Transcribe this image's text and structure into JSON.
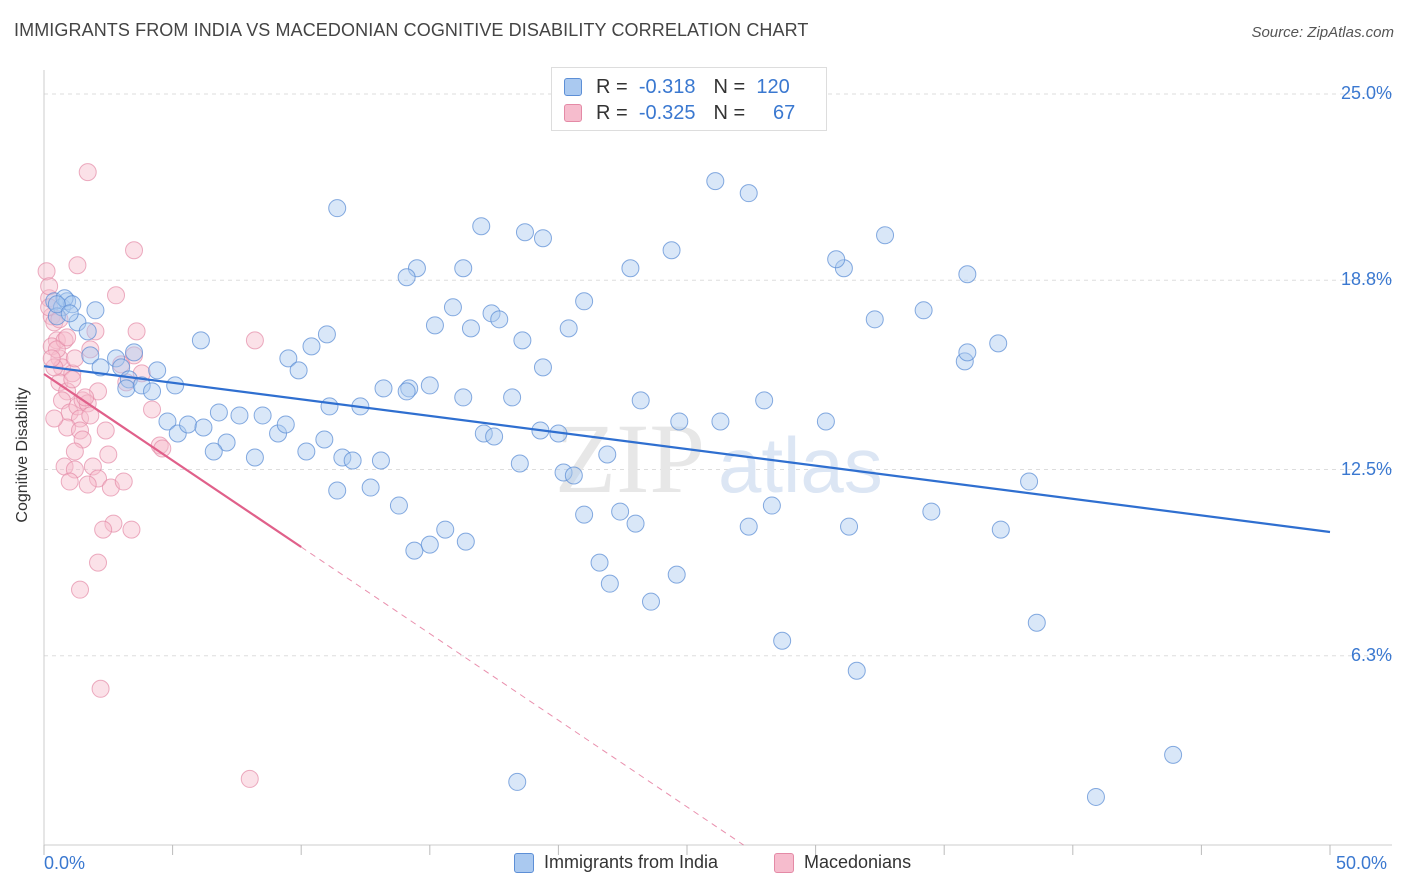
{
  "title": "IMMIGRANTS FROM INDIA VS MACEDONIAN COGNITIVE DISABILITY CORRELATION CHART",
  "source": "Source: ZipAtlas.com",
  "watermark": {
    "zip": "ZIP",
    "atlas": "atlas"
  },
  "legend_top": [
    {
      "r_label": "R =",
      "r_value": "-0.318",
      "n_label": "N =",
      "n_value": "120",
      "swatch_fill": "#aac9f0",
      "swatch_stroke": "#5d8fd6"
    },
    {
      "r_label": "R =",
      "r_value": "-0.325",
      "n_label": "N =",
      "n_value": "67",
      "swatch_fill": "#f6bccd",
      "swatch_stroke": "#e48aa6"
    }
  ],
  "legend_bottom": [
    {
      "label": "Immigrants from India",
      "swatch_fill": "#aac9f0",
      "swatch_stroke": "#5d8fd6"
    },
    {
      "label": "Macedonians",
      "swatch_fill": "#f6bccd",
      "swatch_stroke": "#e48aa6"
    }
  ],
  "chart_data": {
    "type": "scatter",
    "title": "IMMIGRANTS FROM INDIA VS MACEDONIAN COGNITIVE DISABILITY CORRELATION CHART",
    "xlabel": "",
    "ylabel": "Cognitive Disability",
    "xlim": [
      0,
      50
    ],
    "ylim": [
      0,
      25.8
    ],
    "x_tick_labels": [
      "0.0%",
      "50.0%"
    ],
    "y_ticks": [
      6.3,
      12.5,
      18.8,
      25.0
    ],
    "y_tick_labels": [
      "6.3%",
      "12.5%",
      "18.8%",
      "25.0%"
    ],
    "grid": "horizontal dashed",
    "legend_position": "top-center and bottom",
    "colors": {
      "india": "#5d8fd6",
      "india_fill": "#aac9f0",
      "macedonian": "#e48aa6",
      "macedonian_fill": "#f6bccd",
      "india_line": "#2f6fd0",
      "macedonian_line": "#e0608a"
    },
    "series": [
      {
        "name": "Immigrants from India",
        "points": [
          [
            0.4,
            18.1
          ],
          [
            0.7,
            17.9
          ],
          [
            0.9,
            18.1
          ],
          [
            0.8,
            18.2
          ],
          [
            1.1,
            18.0
          ],
          [
            0.5,
            17.6
          ],
          [
            1.3,
            17.4
          ],
          [
            2.0,
            17.8
          ],
          [
            1.7,
            17.1
          ],
          [
            1.8,
            16.3
          ],
          [
            2.2,
            15.9
          ],
          [
            2.8,
            16.2
          ],
          [
            3.0,
            15.9
          ],
          [
            3.3,
            15.5
          ],
          [
            3.5,
            16.4
          ],
          [
            3.2,
            15.2
          ],
          [
            3.8,
            15.3
          ],
          [
            4.2,
            15.1
          ],
          [
            4.4,
            15.8
          ],
          [
            5.1,
            15.3
          ],
          [
            4.8,
            14.1
          ],
          [
            5.2,
            13.7
          ],
          [
            5.6,
            14.0
          ],
          [
            6.2,
            13.9
          ],
          [
            6.8,
            14.4
          ],
          [
            7.1,
            13.4
          ],
          [
            6.6,
            13.1
          ],
          [
            7.6,
            14.3
          ],
          [
            8.2,
            12.9
          ],
          [
            8.5,
            14.3
          ],
          [
            9.1,
            13.7
          ],
          [
            9.4,
            14.0
          ],
          [
            10.2,
            13.1
          ],
          [
            10.9,
            13.5
          ],
          [
            11.6,
            12.9
          ],
          [
            11.4,
            11.8
          ],
          [
            12.0,
            12.8
          ],
          [
            12.7,
            11.9
          ],
          [
            13.1,
            12.8
          ],
          [
            13.8,
            11.3
          ],
          [
            14.4,
            9.8
          ],
          [
            15.0,
            10.0
          ],
          [
            15.6,
            10.5
          ],
          [
            16.4,
            10.1
          ],
          [
            11.1,
            14.6
          ],
          [
            12.3,
            14.6
          ],
          [
            13.2,
            15.2
          ],
          [
            14.2,
            15.2
          ],
          [
            15.0,
            15.3
          ],
          [
            14.1,
            15.1
          ],
          [
            16.3,
            14.9
          ],
          [
            17.1,
            13.7
          ],
          [
            17.5,
            13.6
          ],
          [
            18.2,
            14.9
          ],
          [
            18.5,
            12.7
          ],
          [
            19.3,
            13.8
          ],
          [
            20.0,
            13.7
          ],
          [
            20.2,
            12.4
          ],
          [
            20.6,
            12.3
          ],
          [
            21.0,
            11.0
          ],
          [
            21.9,
            13.0
          ],
          [
            22.4,
            11.1
          ],
          [
            23.0,
            10.7
          ],
          [
            21.6,
            9.4
          ],
          [
            22.0,
            8.7
          ],
          [
            23.6,
            8.1
          ],
          [
            24.6,
            9.0
          ],
          [
            23.2,
            14.8
          ],
          [
            24.7,
            14.1
          ],
          [
            26.3,
            14.1
          ],
          [
            27.4,
            10.6
          ],
          [
            28.0,
            14.8
          ],
          [
            28.3,
            11.3
          ],
          [
            28.7,
            6.8
          ],
          [
            30.4,
            14.1
          ],
          [
            31.6,
            5.8
          ],
          [
            31.3,
            10.6
          ],
          [
            34.5,
            11.1
          ],
          [
            26.1,
            22.1
          ],
          [
            24.4,
            19.8
          ],
          [
            27.4,
            21.7
          ],
          [
            22.8,
            19.2
          ],
          [
            21.0,
            18.1
          ],
          [
            17.0,
            20.6
          ],
          [
            16.3,
            19.2
          ],
          [
            18.7,
            20.4
          ],
          [
            19.4,
            20.2
          ],
          [
            14.5,
            19.2
          ],
          [
            11.4,
            21.2
          ],
          [
            14.1,
            18.9
          ],
          [
            15.9,
            17.9
          ],
          [
            17.4,
            17.7
          ],
          [
            17.7,
            17.5
          ],
          [
            18.6,
            16.8
          ],
          [
            19.4,
            15.9
          ],
          [
            20.4,
            17.2
          ],
          [
            16.6,
            17.2
          ],
          [
            15.2,
            17.3
          ],
          [
            11.0,
            17.0
          ],
          [
            9.5,
            16.2
          ],
          [
            9.9,
            15.8
          ],
          [
            10.4,
            16.6
          ],
          [
            31.1,
            19.2
          ],
          [
            32.7,
            20.3
          ],
          [
            30.8,
            19.5
          ],
          [
            32.3,
            17.5
          ],
          [
            34.2,
            17.8
          ],
          [
            35.9,
            19.0
          ],
          [
            35.8,
            16.1
          ],
          [
            35.9,
            16.4
          ],
          [
            37.1,
            16.7
          ],
          [
            38.3,
            12.1
          ],
          [
            37.2,
            10.5
          ],
          [
            38.6,
            7.4
          ],
          [
            6.1,
            16.8
          ],
          [
            43.9,
            3.0
          ],
          [
            40.9,
            1.6
          ],
          [
            18.4,
            2.1
          ],
          [
            0.5,
            18.0
          ],
          [
            1.0,
            17.7
          ]
        ]
      },
      {
        "name": "Macedonians",
        "points": [
          [
            0.1,
            19.1
          ],
          [
            0.2,
            18.2
          ],
          [
            0.3,
            17.6
          ],
          [
            0.4,
            17.4
          ],
          [
            0.5,
            16.8
          ],
          [
            0.3,
            16.6
          ],
          [
            0.6,
            16.2
          ],
          [
            0.7,
            15.9
          ],
          [
            0.8,
            16.8
          ],
          [
            0.6,
            15.4
          ],
          [
            0.9,
            15.1
          ],
          [
            1.1,
            15.7
          ],
          [
            1.2,
            16.2
          ],
          [
            0.7,
            14.8
          ],
          [
            1.0,
            14.4
          ],
          [
            1.3,
            14.6
          ],
          [
            1.4,
            14.2
          ],
          [
            0.9,
            13.9
          ],
          [
            1.5,
            14.8
          ],
          [
            1.7,
            14.7
          ],
          [
            1.8,
            14.3
          ],
          [
            1.4,
            13.8
          ],
          [
            1.5,
            13.5
          ],
          [
            1.2,
            13.1
          ],
          [
            0.8,
            12.6
          ],
          [
            1.2,
            12.5
          ],
          [
            1.9,
            12.6
          ],
          [
            2.1,
            12.2
          ],
          [
            2.5,
            13.0
          ],
          [
            1.0,
            12.1
          ],
          [
            2.6,
            11.9
          ],
          [
            3.1,
            12.1
          ],
          [
            2.7,
            10.7
          ],
          [
            2.3,
            10.5
          ],
          [
            3.4,
            10.5
          ],
          [
            2.1,
            9.4
          ],
          [
            1.4,
            8.5
          ],
          [
            3.6,
            17.1
          ],
          [
            3.5,
            16.3
          ],
          [
            3.8,
            15.7
          ],
          [
            4.2,
            14.5
          ],
          [
            4.5,
            13.3
          ],
          [
            4.6,
            13.2
          ],
          [
            2.8,
            18.3
          ],
          [
            3.5,
            19.8
          ],
          [
            1.7,
            22.4
          ],
          [
            1.3,
            19.3
          ],
          [
            8.2,
            16.8
          ],
          [
            8.0,
            2.2
          ],
          [
            2.2,
            5.2
          ],
          [
            0.2,
            17.9
          ],
          [
            0.5,
            16.5
          ],
          [
            0.4,
            15.9
          ],
          [
            1.8,
            16.5
          ],
          [
            2.0,
            17.1
          ],
          [
            0.2,
            18.6
          ],
          [
            0.6,
            17.5
          ],
          [
            0.3,
            16.2
          ],
          [
            1.1,
            15.5
          ],
          [
            0.9,
            16.9
          ],
          [
            2.1,
            15.1
          ],
          [
            1.6,
            14.9
          ],
          [
            2.4,
            13.8
          ],
          [
            3.0,
            16.0
          ],
          [
            3.2,
            15.4
          ],
          [
            0.4,
            14.2
          ],
          [
            1.7,
            12.0
          ]
        ]
      }
    ],
    "trendlines": [
      {
        "series": "Immigrants from India",
        "x": [
          0,
          50
        ],
        "y": [
          15.94,
          10.42
        ]
      },
      {
        "series": "Macedonians",
        "x": [
          0,
          10
        ],
        "y": [
          15.68,
          9.92
        ],
        "dashed_extension_to": [
          27.2,
          0
        ]
      }
    ]
  }
}
